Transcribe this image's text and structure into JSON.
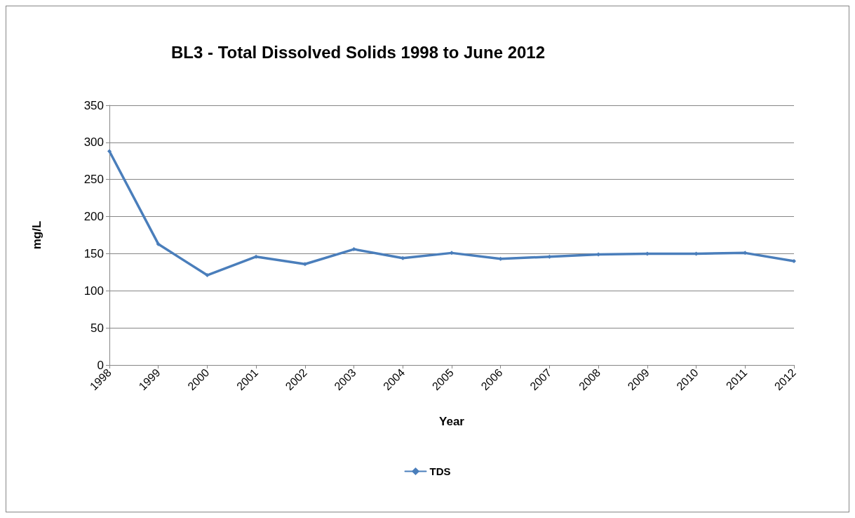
{
  "chart_data": {
    "type": "line",
    "title": "BL3 - Total Dissolved Solids 1998 to June 2012",
    "xlabel": "Year",
    "ylabel": "mg/L",
    "categories": [
      "1998",
      "1999",
      "2000",
      "2001",
      "2002",
      "2003",
      "2004",
      "2005",
      "2006",
      "2007",
      "2008",
      "2009",
      "2010",
      "2011",
      "2012"
    ],
    "series": [
      {
        "name": "TDS",
        "color": "#4a7ebb",
        "values": [
          288,
          163,
          121,
          146,
          136,
          156,
          144,
          151,
          143,
          146,
          149,
          150,
          150,
          151,
          140
        ]
      }
    ],
    "ylim": [
      0,
      350
    ],
    "yticks": [
      0,
      50,
      100,
      150,
      200,
      250,
      300,
      350
    ],
    "grid": "y",
    "legend": "bottom",
    "marker": "diamond",
    "line_style": "solid"
  }
}
